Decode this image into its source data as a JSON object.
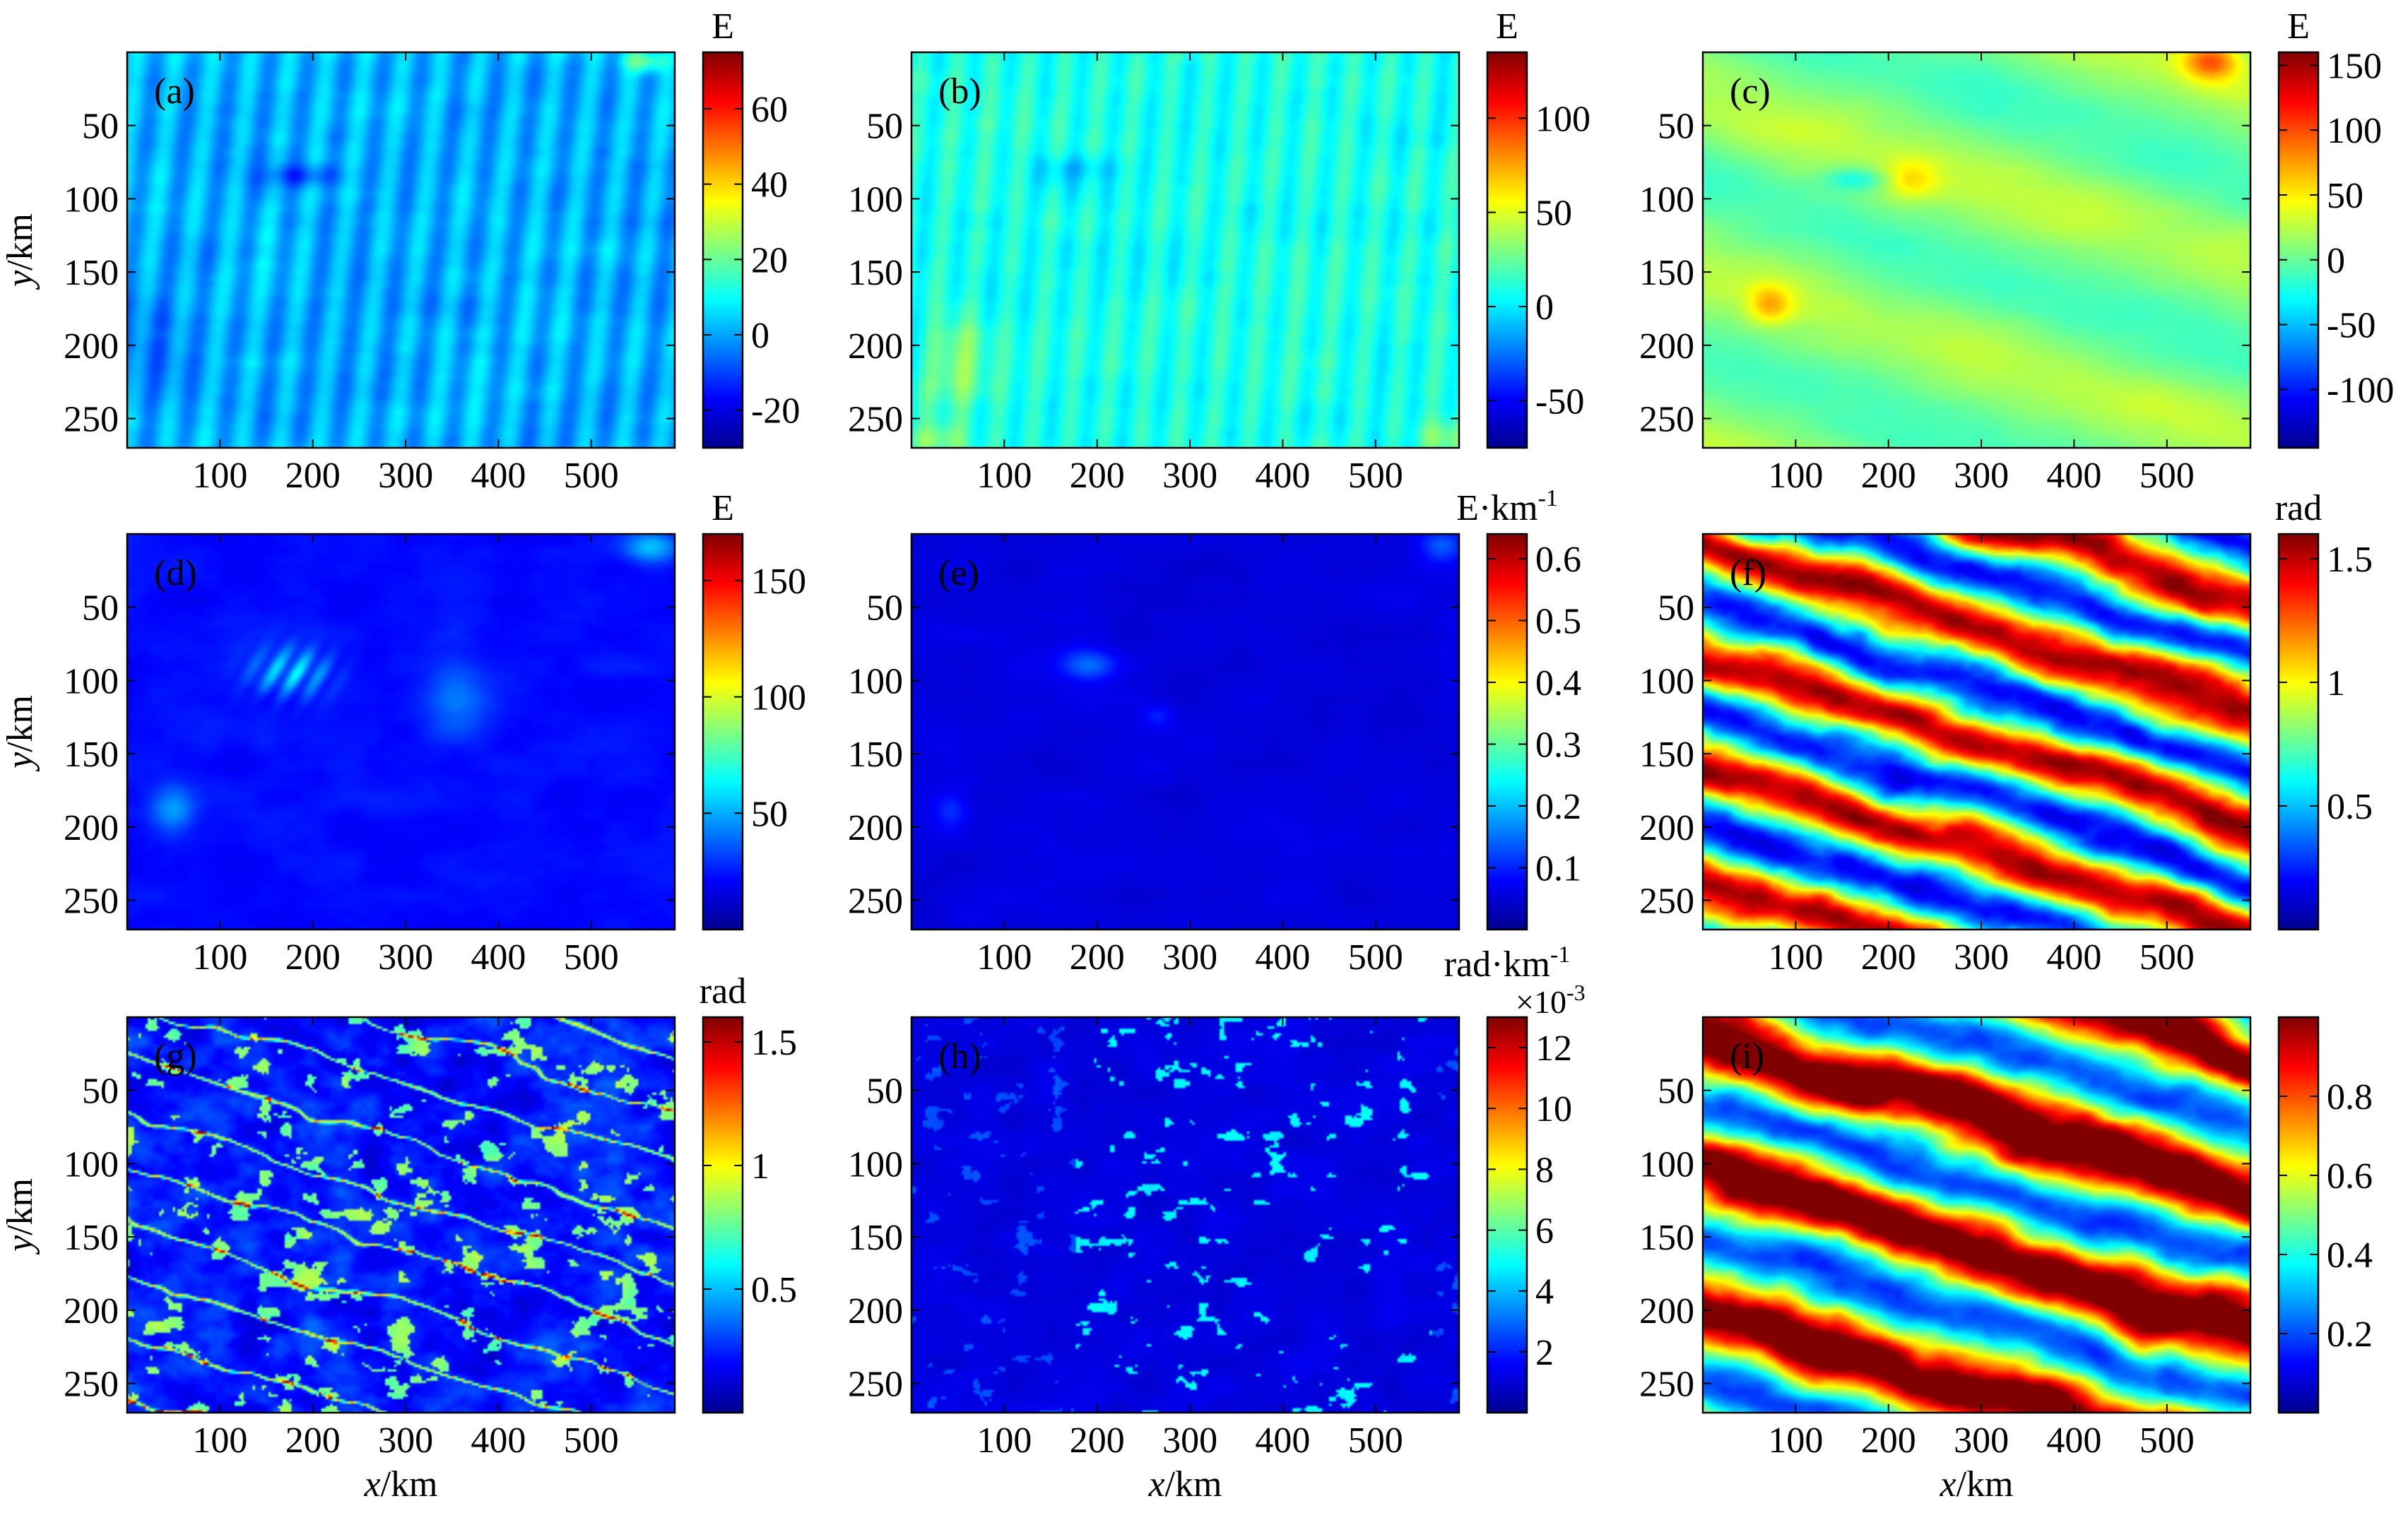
{
  "figure": {
    "x_label_var": "x",
    "y_label_var": "y",
    "axis_unit": "/km"
  },
  "colormap": [
    "#00008f",
    "#0000ff",
    "#0080ff",
    "#00ffff",
    "#80ff80",
    "#ffff00",
    "#ff8000",
    "#ff0000",
    "#800000"
  ],
  "chart_data": [
    {
      "id": "a",
      "type": "heatmap",
      "panel_label": "(a)",
      "colorbar_unit": "E",
      "xlim": [
        0,
        590
      ],
      "ylim": [
        0,
        270
      ],
      "x_ticks": [
        100,
        200,
        300,
        400,
        500
      ],
      "y_ticks": [
        50,
        100,
        150,
        200,
        250
      ],
      "clim": [
        -30,
        75
      ],
      "colorbar_ticks": [
        -20,
        0,
        20,
        40,
        60
      ],
      "field": "field_a"
    },
    {
      "id": "b",
      "type": "heatmap",
      "panel_label": "(b)",
      "colorbar_unit": "E",
      "xlim": [
        0,
        590
      ],
      "ylim": [
        0,
        270
      ],
      "x_ticks": [
        100,
        200,
        300,
        400,
        500
      ],
      "y_ticks": [
        50,
        100,
        150,
        200,
        250
      ],
      "clim": [
        -75,
        135
      ],
      "colorbar_ticks": [
        -50,
        0,
        50,
        100
      ],
      "field": "field_b"
    },
    {
      "id": "c",
      "type": "heatmap",
      "panel_label": "(c)",
      "colorbar_unit": "E",
      "xlim": [
        0,
        590
      ],
      "ylim": [
        0,
        270
      ],
      "x_ticks": [
        100,
        200,
        300,
        400,
        500
      ],
      "y_ticks": [
        50,
        100,
        150,
        200,
        250
      ],
      "clim": [
        -145,
        160
      ],
      "colorbar_ticks": [
        -100,
        -50,
        0,
        50,
        100,
        150
      ],
      "field": "field_c"
    },
    {
      "id": "d",
      "type": "heatmap",
      "panel_label": "(d)",
      "colorbar_unit": "E",
      "xlim": [
        0,
        590
      ],
      "ylim": [
        0,
        270
      ],
      "x_ticks": [
        100,
        200,
        300,
        400,
        500
      ],
      "y_ticks": [
        50,
        100,
        150,
        200,
        250
      ],
      "clim": [
        0,
        170
      ],
      "colorbar_ticks": [
        50,
        100,
        150
      ],
      "field": "field_d"
    },
    {
      "id": "e",
      "type": "heatmap",
      "panel_label": "(e)",
      "colorbar_unit": "E·km",
      "colorbar_unit_exp": "-1",
      "xlim": [
        0,
        590
      ],
      "ylim": [
        0,
        270
      ],
      "x_ticks": [
        100,
        200,
        300,
        400,
        500
      ],
      "y_ticks": [
        50,
        100,
        150,
        200,
        250
      ],
      "clim": [
        0,
        0.64
      ],
      "colorbar_ticks": [
        0.1,
        0.2,
        0.3,
        0.4,
        0.5,
        0.6
      ],
      "field": "field_e"
    },
    {
      "id": "f",
      "type": "heatmap",
      "panel_label": "(f)",
      "colorbar_unit": "rad",
      "xlim": [
        0,
        590
      ],
      "ylim": [
        0,
        270
      ],
      "x_ticks": [
        100,
        200,
        300,
        400,
        500
      ],
      "y_ticks": [
        50,
        100,
        150,
        200,
        250
      ],
      "clim": [
        0,
        1.6
      ],
      "colorbar_ticks": [
        0.5,
        1,
        1.5
      ],
      "field": "field_f"
    },
    {
      "id": "g",
      "type": "heatmap",
      "panel_label": "(g)",
      "colorbar_unit": "rad",
      "xlim": [
        0,
        590
      ],
      "ylim": [
        0,
        270
      ],
      "x_ticks": [
        100,
        200,
        300,
        400,
        500
      ],
      "y_ticks": [
        50,
        100,
        150,
        200,
        250
      ],
      "clim": [
        0,
        1.6
      ],
      "colorbar_ticks": [
        0.5,
        1,
        1.5
      ],
      "field": "field_g"
    },
    {
      "id": "h",
      "type": "heatmap",
      "panel_label": "(h)",
      "colorbar_unit": "rad·km",
      "colorbar_unit_exp": "-1",
      "colorbar_multiplier": "×10",
      "colorbar_multiplier_exp": "-3",
      "xlim": [
        0,
        590
      ],
      "ylim": [
        0,
        270
      ],
      "x_ticks": [
        100,
        200,
        300,
        400,
        500
      ],
      "y_ticks": [
        50,
        100,
        150,
        200,
        250
      ],
      "clim": [
        0,
        13
      ],
      "colorbar_ticks": [
        2,
        4,
        6,
        8,
        10,
        12
      ],
      "field": "field_h"
    },
    {
      "id": "i",
      "type": "heatmap",
      "panel_label": "(i)",
      "colorbar_unit": "",
      "xlim": [
        0,
        590
      ],
      "ylim": [
        0,
        270
      ],
      "x_ticks": [
        100,
        200,
        300,
        400,
        500
      ],
      "y_ticks": [
        50,
        100,
        150,
        200,
        250
      ],
      "clim": [
        0,
        1
      ],
      "colorbar_ticks": [
        0.2,
        0.4,
        0.6,
        0.8
      ],
      "field": "field_i"
    }
  ]
}
